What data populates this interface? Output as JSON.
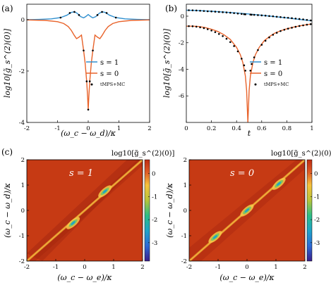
{
  "panels": {
    "a": "(a)",
    "b": "(b)",
    "c": "(c)"
  },
  "chart_data": [
    {
      "panel": "a",
      "type": "line",
      "xlabel": "(ω_c − ω_d)/κ",
      "ylabel": "log10[g̃_s^(2)(0)]",
      "xlim": [
        -2,
        2
      ],
      "ylim": [
        -4,
        0.6
      ],
      "xticks": [
        "-2",
        "-1",
        "0",
        "1",
        "2"
      ],
      "yticks": [
        "0",
        "-2",
        "-4"
      ],
      "legend": [
        "s = 1",
        "s = 0",
        "tMPS+MC"
      ],
      "series": [
        {
          "name": "s = 1",
          "color": "#2f8fcf",
          "x": [
            -2,
            -1.6,
            -1.2,
            -0.9,
            -0.7,
            -0.55,
            -0.45,
            -0.35,
            -0.25,
            -0.15,
            -0.08,
            0,
            0.08,
            0.15,
            0.25,
            0.35,
            0.45,
            0.55,
            0.7,
            0.9,
            1.2,
            1.6,
            2
          ],
          "y": [
            0,
            0.01,
            0.03,
            0.08,
            0.17,
            0.28,
            0.31,
            0.24,
            0.12,
            0.07,
            0.12,
            0.2,
            0.12,
            0.07,
            0.12,
            0.24,
            0.31,
            0.28,
            0.17,
            0.08,
            0.03,
            0.01,
            0
          ]
        },
        {
          "name": "s = 0",
          "color": "#e8632b",
          "x": [
            -2,
            -1.4,
            -1,
            -0.8,
            -0.65,
            -0.55,
            -0.45,
            -0.38,
            -0.3,
            -0.22,
            -0.15,
            -0.1,
            -0.05,
            -0.02,
            0,
            0.02,
            0.05,
            0.1,
            0.15,
            0.22,
            0.3,
            0.38,
            0.45,
            0.55,
            0.65,
            0.8,
            1,
            1.4,
            2
          ],
          "y": [
            -0.01,
            -0.03,
            -0.08,
            -0.15,
            -0.27,
            -0.42,
            -0.62,
            -0.74,
            -0.68,
            -0.6,
            -1.2,
            -1.7,
            -2.4,
            -3.0,
            -3.5,
            -3.0,
            -2.4,
            -1.7,
            -1.2,
            -0.6,
            -0.68,
            -0.74,
            -0.62,
            -0.42,
            -0.27,
            -0.15,
            -0.08,
            -0.03,
            -0.01
          ]
        }
      ],
      "markers": {
        "name": "tMPS+MC",
        "x": [
          -0.9,
          -0.6,
          -0.45,
          -0.3,
          -0.15,
          -0.05,
          0,
          0.05,
          0.15,
          0.3,
          0.45,
          0.6,
          0.9
        ],
        "y": [
          0.08,
          0.26,
          0.3,
          0.18,
          -1.2,
          -2.4,
          -3.5,
          -2.4,
          -1.2,
          0.18,
          0.3,
          0.26,
          0.08
        ]
      }
    },
    {
      "panel": "b",
      "type": "line",
      "xlabel": "t",
      "ylabel": "log10[g̃_s^(2)(0)]",
      "xlim": [
        0,
        1
      ],
      "ylim": [
        -8,
        0.9
      ],
      "xticks": [
        "0",
        "0.2",
        "0.4",
        "0.6",
        "0.8",
        "1"
      ],
      "yticks": [
        "0",
        "-2",
        "-4",
        "-6"
      ],
      "legend": [
        "s = 1",
        "s = 0",
        "tMPS+MC"
      ],
      "series": [
        {
          "name": "s = 1",
          "color": "#2f8fcf",
          "x": [
            0,
            0.1,
            0.2,
            0.3,
            0.4,
            0.5,
            0.6,
            0.7,
            0.8,
            0.9,
            1
          ],
          "y": [
            0.45,
            0.42,
            0.37,
            0.31,
            0.24,
            0.16,
            0.07,
            -0.03,
            -0.13,
            -0.24,
            -0.35
          ]
        },
        {
          "name": "s = 0",
          "color": "#e8632b",
          "x": [
            0,
            0.05,
            0.1,
            0.15,
            0.2,
            0.25,
            0.3,
            0.35,
            0.4,
            0.43,
            0.45,
            0.47,
            0.48,
            0.49,
            0.5,
            0.51,
            0.53,
            0.55,
            0.58,
            0.62,
            0.66,
            0.7,
            0.75,
            0.8,
            0.85,
            0.9,
            0.95,
            1
          ],
          "y": [
            -0.75,
            -0.75,
            -0.78,
            -0.86,
            -0.98,
            -1.15,
            -1.4,
            -1.75,
            -2.35,
            -2.9,
            -3.5,
            -4.5,
            -5.6,
            -8,
            -5.6,
            -4.5,
            -3.5,
            -2.9,
            -2.35,
            -1.85,
            -1.55,
            -1.3,
            -1.1,
            -0.95,
            -0.83,
            -0.73,
            -0.65,
            -0.58
          ]
        }
      ],
      "markers": {
        "name": "tMPS+MC",
        "x": [
          0.02,
          0.05,
          0.08,
          0.11,
          0.14,
          0.17,
          0.2,
          0.23,
          0.26,
          0.29,
          0.32,
          0.35,
          0.38,
          0.41,
          0.44,
          0.46,
          0.47,
          0.51,
          0.52,
          0.54,
          0.57,
          0.6,
          0.63,
          0.66,
          0.69,
          0.72,
          0.75,
          0.78,
          0.81,
          0.84,
          0.87,
          0.9,
          0.93,
          0.96,
          0.99
        ],
        "y": [
          0.45,
          0.44,
          0.43,
          0.41,
          0.39,
          0.37,
          0.36,
          0.34,
          0.32,
          0.3,
          0.28,
          0.26,
          0.23,
          0.2,
          0.17,
          0.15,
          0.14,
          0.12,
          0.11,
          0.1,
          0.08,
          0.06,
          0.04,
          0.01,
          -0.01,
          -0.04,
          -0.07,
          -0.1,
          -0.12,
          -0.15,
          -0.18,
          -0.21,
          -0.24,
          -0.28,
          -0.32
        ],
        "y2": [
          -0.75,
          -0.76,
          -0.79,
          -0.84,
          -0.9,
          -0.98,
          -1.08,
          -1.2,
          -1.34,
          -1.5,
          -1.7,
          -1.95,
          -2.25,
          -2.65,
          -3.2,
          -3.7,
          -4.1,
          -4.1,
          -3.6,
          -3.1,
          -2.55,
          -2.15,
          -1.85,
          -1.6,
          -1.4,
          -1.25,
          -1.12,
          -1.02,
          -0.94,
          -0.87,
          -0.8,
          -0.74,
          -0.69,
          -0.64,
          -0.6
        ]
      }
    },
    {
      "panel": "c-left",
      "type": "heatmap",
      "annotation": "s = 1",
      "title": "log10[g̃_s^(2)(0)]",
      "xlabel": "(ω_c − ω_e)/κ",
      "ylabel": "(ω_c − ω_d)/κ",
      "xlim": [
        -2,
        2
      ],
      "ylim": [
        -2,
        2
      ],
      "xticks": [
        "-2",
        "-1",
        "0",
        "1",
        "2"
      ],
      "yticks": [
        "-2",
        "-1",
        "0",
        "1",
        "2"
      ],
      "colorbar": {
        "range": [
          -3.8,
          0.6
        ],
        "ticks": [
          "0",
          "-1",
          "-2",
          "-3"
        ]
      },
      "features": [
        {
          "x": -0.4,
          "y": -0.5,
          "value": -2.5
        },
        {
          "x": 0.7,
          "y": 0.75,
          "value": -2.5
        }
      ]
    },
    {
      "panel": "c-right",
      "type": "heatmap",
      "annotation": "s = 0",
      "title": "log10[g̃_s^(2)(0)]",
      "xlabel": "(ω_c − ω_e)/κ",
      "ylabel": "(ω_c − ω_d)/κ",
      "xlim": [
        -2,
        2
      ],
      "ylim": [
        -2,
        2
      ],
      "xticks": [
        "-2",
        "-1",
        "0",
        "1",
        "2"
      ],
      "yticks": [
        "-2",
        "-1",
        "0",
        "1",
        "2"
      ],
      "colorbar": {
        "range": [
          -3.8,
          0.6
        ],
        "ticks": [
          "0",
          "-1",
          "-2",
          "-3"
        ]
      },
      "features": [
        {
          "x": 0,
          "y": 0,
          "value": -2.5
        },
        {
          "x": -1.1,
          "y": -1.05,
          "value": -2.2
        },
        {
          "x": 1.1,
          "y": 1.05,
          "value": -2.2
        }
      ]
    }
  ]
}
